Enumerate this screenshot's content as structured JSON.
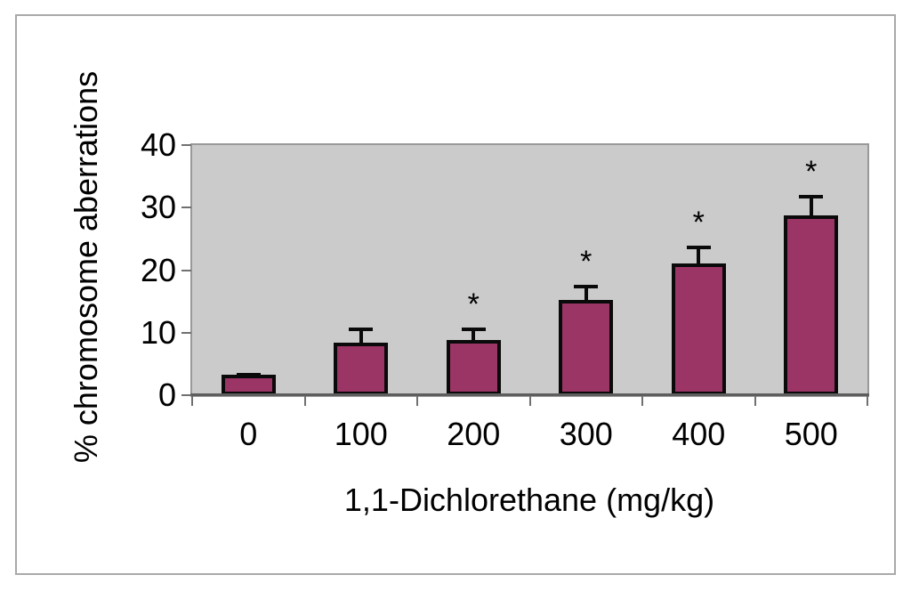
{
  "figure": {
    "background": "#ffffff",
    "border_color": "#a9a9a9"
  },
  "chart_data": {
    "type": "bar",
    "title": "",
    "xlabel": "1,1-Dichlorethane (mg/kg)",
    "ylabel": "% chromosome aberrations",
    "categories": [
      "0",
      "100",
      "200",
      "300",
      "400",
      "500"
    ],
    "series": [
      {
        "name": "% chromosome aberrations",
        "values": [
          2.7,
          7.8,
          8.2,
          14.6,
          20.5,
          28.2
        ],
        "error_upper": [
          0.6,
          2.7,
          2.3,
          2.8,
          3.2,
          3.5
        ],
        "significant": [
          false,
          false,
          true,
          true,
          true,
          true
        ]
      }
    ],
    "significance_marker": "*",
    "y_ticks": [
      0,
      10,
      20,
      30,
      40
    ],
    "ylim": [
      0,
      40
    ],
    "grid": false,
    "legend": "none",
    "bar_color": "#9A3566",
    "bar_border_color": "#0a0a0a",
    "plot_bg_color": "#cbcbcb",
    "axis_color": "#5e5e5e",
    "tick_color": "#707070"
  }
}
